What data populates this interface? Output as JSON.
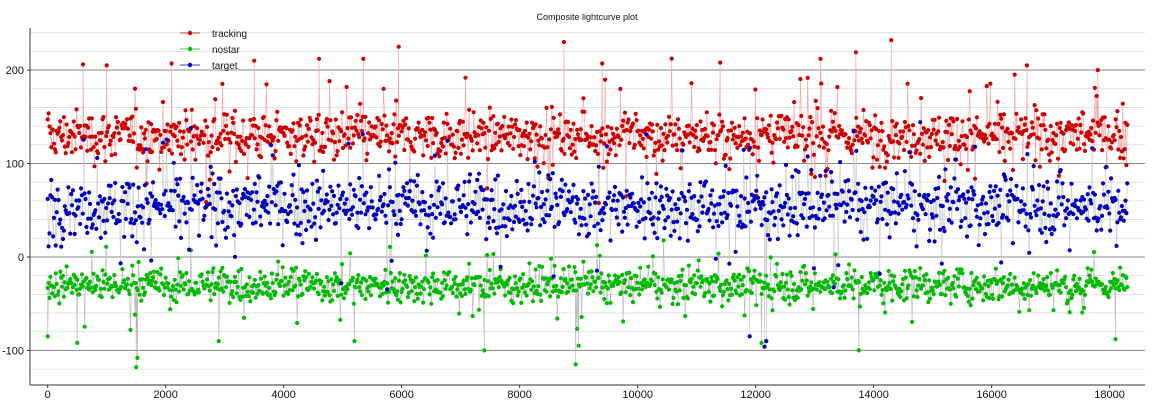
{
  "chart_data": {
    "type": "scatter",
    "title": "Composite lightcurve plot",
    "xlabel": "",
    "ylabel": "",
    "xlim": [
      -300,
      18600
    ],
    "ylim": [
      -137,
      245
    ],
    "x_ticks": [
      0,
      2000,
      4000,
      6000,
      8000,
      10000,
      12000,
      14000,
      16000,
      18000
    ],
    "y_ticks": [
      -100,
      0,
      100,
      200
    ],
    "grid": true,
    "legend_position": "top-left",
    "connected_points": true,
    "x_range_of_points": [
      0,
      18300
    ],
    "point_count_per_series": 1200,
    "series": [
      {
        "name": "tracking",
        "color": "#cc0000",
        "typical_range": [
          90,
          170
        ],
        "approx_center": 130,
        "approx_spread": 22,
        "notable_max": [
          {
            "x": 600,
            "y": 206
          },
          {
            "x": 1000,
            "y": 205
          },
          {
            "x": 2100,
            "y": 207
          },
          {
            "x": 3500,
            "y": 210
          },
          {
            "x": 4600,
            "y": 212
          },
          {
            "x": 5350,
            "y": 212
          },
          {
            "x": 5950,
            "y": 225
          },
          {
            "x": 8750,
            "y": 230
          },
          {
            "x": 9400,
            "y": 207
          },
          {
            "x": 11400,
            "y": 208
          },
          {
            "x": 13100,
            "y": 212
          },
          {
            "x": 13700,
            "y": 219
          },
          {
            "x": 14300,
            "y": 232
          },
          {
            "x": 16600,
            "y": 205
          },
          {
            "x": 17800,
            "y": 200
          }
        ]
      },
      {
        "name": "nostar",
        "color": "#00bb00",
        "typical_range": [
          -60,
          0
        ],
        "approx_center": -30,
        "approx_spread": 15,
        "notable_min": [
          {
            "x": 0,
            "y": -85
          },
          {
            "x": 500,
            "y": -92
          },
          {
            "x": 1500,
            "y": -118
          },
          {
            "x": 1520,
            "y": -108
          },
          {
            "x": 2900,
            "y": -90
          },
          {
            "x": 5200,
            "y": -90
          },
          {
            "x": 7400,
            "y": -100
          },
          {
            "x": 8950,
            "y": -115
          },
          {
            "x": 9000,
            "y": -95
          },
          {
            "x": 12100,
            "y": -92
          },
          {
            "x": 13750,
            "y": -100
          },
          {
            "x": 18100,
            "y": -88
          }
        ]
      },
      {
        "name": "target",
        "color": "#0000bb",
        "typical_range": [
          0,
          110
        ],
        "approx_center": 55,
        "approx_spread": 28,
        "notable_min": [
          {
            "x": 12150,
            "y": -96
          },
          {
            "x": 12180,
            "y": -90
          },
          {
            "x": 11900,
            "y": -85
          }
        ]
      }
    ]
  }
}
